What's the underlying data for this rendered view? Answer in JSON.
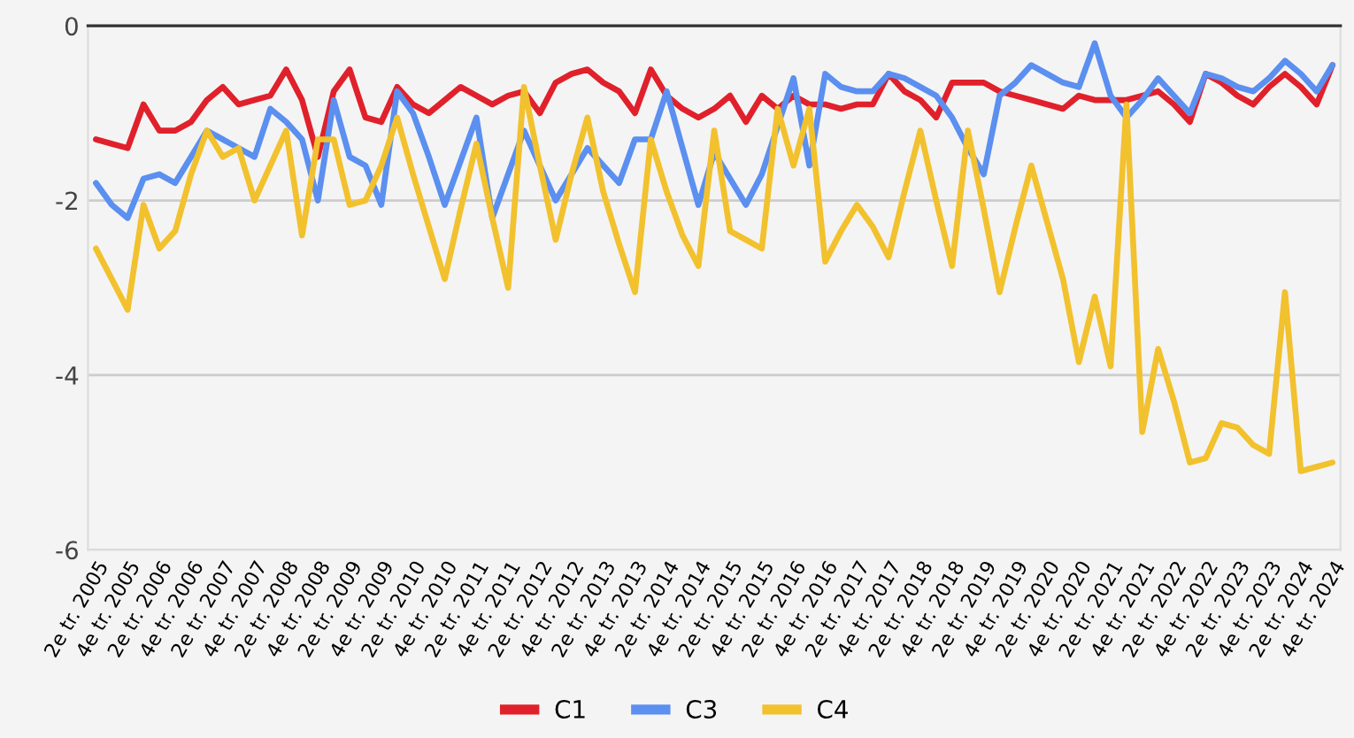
{
  "chart_data": {
    "type": "line",
    "categories": [
      "2e tr. 2005",
      null,
      "4e tr. 2005",
      null,
      "2e tr. 2006",
      null,
      "4e tr. 2006",
      null,
      "2e tr. 2007",
      null,
      "4e tr. 2007",
      null,
      "2e tr. 2008",
      null,
      "4e tr. 2008",
      null,
      "2e tr. 2009",
      null,
      "4e tr. 2009",
      null,
      "2e tr. 2010",
      null,
      "4e tr. 2010",
      null,
      "2e tr. 2011",
      null,
      "4e tr. 2011",
      null,
      "2e tr. 2012",
      null,
      "4e tr. 2012",
      null,
      "2e tr. 2013",
      null,
      "4e tr. 2013",
      null,
      "2e tr. 2014",
      null,
      "4e tr. 2014",
      null,
      "2e tr. 2015",
      null,
      "4e tr. 2015",
      null,
      "2e tr. 2016",
      null,
      "4e tr. 2016",
      null,
      "2e tr. 2017",
      null,
      "4e tr. 2017",
      null,
      "2e tr. 2018",
      null,
      "4e tr. 2018",
      null,
      "2e tr. 2019",
      null,
      "4e tr. 2019",
      null,
      "2e tr. 2020",
      null,
      "4e tr. 2020",
      null,
      "2e tr. 2021",
      null,
      "4e tr. 2021",
      null,
      "2e tr. 2022",
      null,
      "4e tr. 2022",
      null,
      "2e tr. 2023",
      null,
      "4e tr. 2023",
      null,
      "2e tr. 2024",
      null,
      "4e tr. 2024"
    ],
    "series": [
      {
        "name": "C1",
        "color": "#e0212b",
        "values": [
          -1.3,
          -1.35,
          -1.4,
          -0.9,
          -1.2,
          -1.2,
          -1.1,
          -0.85,
          -0.7,
          -0.9,
          -0.85,
          -0.8,
          -0.5,
          -0.85,
          -1.5,
          -0.75,
          -0.5,
          -1.05,
          -1.1,
          -0.7,
          -0.9,
          -1.0,
          -0.85,
          -0.7,
          -0.8,
          -0.9,
          -0.8,
          -0.75,
          -1.0,
          -0.65,
          -0.55,
          -0.5,
          -0.65,
          -0.75,
          -1.0,
          -0.5,
          -0.8,
          -0.95,
          -1.05,
          -0.95,
          -0.8,
          -1.1,
          -0.8,
          -0.95,
          -0.8,
          -0.9,
          -0.9,
          -0.95,
          -0.9,
          -0.9,
          -0.55,
          -0.75,
          -0.85,
          -1.05,
          -0.65,
          -0.65,
          -0.65,
          -0.75,
          -0.8,
          -0.85,
          -0.9,
          -0.95,
          -0.8,
          -0.85,
          -0.85,
          -0.85,
          -0.8,
          -0.75,
          -0.9,
          -1.1,
          -0.55,
          -0.65,
          -0.8,
          -0.9,
          -0.7,
          -0.55,
          -0.7,
          -0.9,
          -0.45
        ]
      },
      {
        "name": "C3",
        "color": "#5b8ff0",
        "values": [
          -1.8,
          -2.05,
          -2.2,
          -1.75,
          -1.7,
          -1.8,
          -1.5,
          -1.2,
          -1.3,
          -1.4,
          -1.5,
          -0.95,
          -1.1,
          -1.3,
          -2.0,
          -0.85,
          -1.5,
          -1.6,
          -2.05,
          -0.75,
          -1.0,
          -1.5,
          -2.05,
          -1.55,
          -1.05,
          -2.2,
          -1.7,
          -1.2,
          -1.6,
          -2.0,
          -1.7,
          -1.4,
          -1.6,
          -1.8,
          -1.3,
          -1.3,
          -0.75,
          -1.4,
          -2.05,
          -1.45,
          -1.75,
          -2.05,
          -1.7,
          -1.15,
          -0.6,
          -1.6,
          -0.55,
          -0.7,
          -0.75,
          -0.75,
          -0.55,
          -0.6,
          -0.7,
          -0.8,
          -1.05,
          -1.4,
          -1.7,
          -0.8,
          -0.65,
          -0.45,
          -0.55,
          -0.65,
          -0.7,
          -0.2,
          -0.8,
          -1.05,
          -0.85,
          -0.6,
          -0.8,
          -1.0,
          -0.55,
          -0.6,
          -0.7,
          -0.75,
          -0.6,
          -0.4,
          -0.55,
          -0.75,
          -0.45
        ]
      },
      {
        "name": "C4",
        "color": "#f2c12e",
        "values": [
          -2.55,
          -2.9,
          -3.25,
          -2.05,
          -2.55,
          -2.35,
          -1.7,
          -1.2,
          -1.5,
          -1.4,
          -2.0,
          -1.6,
          -1.2,
          -2.4,
          -1.3,
          -1.3,
          -2.05,
          -2.0,
          -1.6,
          -1.05,
          -1.7,
          -2.3,
          -2.9,
          -2.1,
          -1.35,
          -2.2,
          -3.0,
          -0.7,
          -1.6,
          -2.45,
          -1.7,
          -1.05,
          -1.9,
          -2.5,
          -3.05,
          -1.3,
          -1.9,
          -2.4,
          -2.75,
          -1.2,
          -2.35,
          -2.45,
          -2.55,
          -0.95,
          -1.6,
          -0.95,
          -2.7,
          -2.35,
          -2.05,
          -2.3,
          -2.65,
          -1.9,
          -1.2,
          -2.0,
          -2.75,
          -1.2,
          -2.1,
          -3.05,
          -2.3,
          -1.6,
          -2.25,
          -2.9,
          -3.85,
          -3.1,
          -3.9,
          -0.9,
          -4.65,
          -3.7,
          -4.3,
          -5.0,
          -4.95,
          -4.55,
          -4.6,
          -4.8,
          -4.9,
          -3.05,
          -5.1,
          -5.05,
          -5.0
        ]
      }
    ],
    "ylim": [
      -6,
      0
    ],
    "yticks": [
      -6,
      -4,
      -2,
      0
    ],
    "grid": "y",
    "legend": "bottom",
    "marker": "none",
    "line_style": "solid"
  }
}
